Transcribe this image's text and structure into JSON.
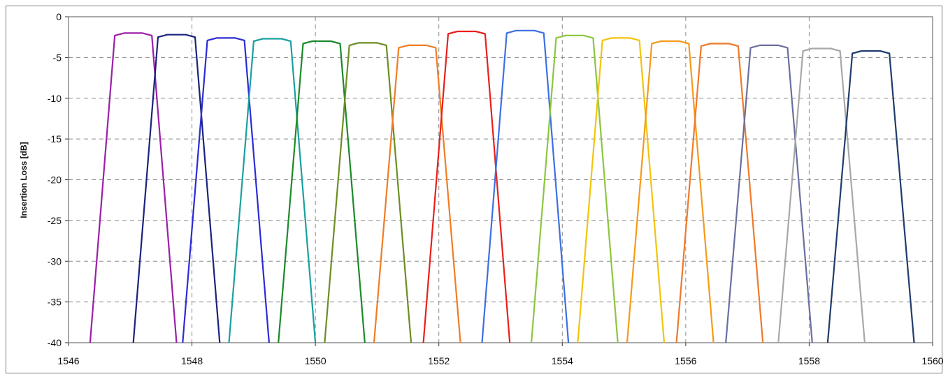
{
  "chart_data": {
    "type": "line",
    "title": "",
    "xlabel": "",
    "ylabel": "Insertion Loss [dB]",
    "xlim": [
      1546,
      1560
    ],
    "ylim": [
      -40,
      0
    ],
    "xticks": [
      1546,
      1548,
      1550,
      1552,
      1554,
      1556,
      1558,
      1560
    ],
    "yticks": [
      0,
      -5,
      -10,
      -15,
      -20,
      -25,
      -30,
      -35,
      -40
    ],
    "x_tick_labels": [
      "1546",
      "1548",
      "1550",
      "1552",
      "1554",
      "1556",
      "1558",
      "1560"
    ],
    "y_tick_labels": [
      "0",
      "-5",
      "-10",
      "-15",
      "-20",
      "-25",
      "-30",
      "-35",
      "-40"
    ],
    "grid": true,
    "grid_style": "dashed",
    "legend": "none",
    "series": [
      {
        "color": "#9b1fa8",
        "x": [
          1546.35,
          1546.75,
          1546.9,
          1547.2,
          1547.35,
          1547.75
        ],
        "y": [
          -40,
          -2.3,
          -2.0,
          -2.0,
          -2.3,
          -40
        ]
      },
      {
        "color": "#1a237e",
        "x": [
          1547.05,
          1547.45,
          1547.6,
          1547.9,
          1548.05,
          1548.45
        ],
        "y": [
          -40,
          -2.5,
          -2.2,
          -2.2,
          -2.5,
          -40
        ]
      },
      {
        "color": "#2c2cd6",
        "x": [
          1547.85,
          1548.25,
          1548.4,
          1548.7,
          1548.85,
          1549.25
        ],
        "y": [
          -40,
          -2.9,
          -2.6,
          -2.6,
          -2.9,
          -40
        ]
      },
      {
        "color": "#1aa0a0",
        "x": [
          1548.6,
          1549.0,
          1549.15,
          1549.45,
          1549.6,
          1550.0
        ],
        "y": [
          -40,
          -3.0,
          -2.7,
          -2.7,
          -3.0,
          -40
        ]
      },
      {
        "color": "#1b8a2a",
        "x": [
          1549.4,
          1549.8,
          1549.95,
          1550.25,
          1550.4,
          1550.8
        ],
        "y": [
          -40,
          -3.3,
          -3.0,
          -3.0,
          -3.3,
          -40
        ]
      },
      {
        "color": "#6b8e23",
        "x": [
          1550.15,
          1550.55,
          1550.7,
          1551.0,
          1551.15,
          1551.55
        ],
        "y": [
          -40,
          -3.5,
          -3.2,
          -3.2,
          -3.5,
          -40
        ]
      },
      {
        "color": "#f07d24",
        "x": [
          1550.95,
          1551.35,
          1551.5,
          1551.8,
          1551.95,
          1552.35
        ],
        "y": [
          -40,
          -3.8,
          -3.5,
          -3.5,
          -3.8,
          -40
        ]
      },
      {
        "color": "#e8201c",
        "x": [
          1551.75,
          1552.15,
          1552.3,
          1552.6,
          1552.75,
          1553.15
        ],
        "y": [
          -40,
          -2.1,
          -1.8,
          -1.8,
          -2.1,
          -40
        ]
      },
      {
        "color": "#3d6fe3",
        "x": [
          1552.7,
          1553.1,
          1553.25,
          1553.55,
          1553.7,
          1554.1
        ],
        "y": [
          -40,
          -2.0,
          -1.7,
          -1.7,
          -2.0,
          -40
        ]
      },
      {
        "color": "#8cc63f",
        "x": [
          1553.5,
          1553.9,
          1554.05,
          1554.35,
          1554.5,
          1554.9
        ],
        "y": [
          -40,
          -2.6,
          -2.3,
          -2.3,
          -2.6,
          -40
        ]
      },
      {
        "color": "#f2c40d",
        "x": [
          1554.25,
          1554.65,
          1554.8,
          1555.1,
          1555.25,
          1555.65
        ],
        "y": [
          -40,
          -2.9,
          -2.6,
          -2.6,
          -2.9,
          -40
        ]
      },
      {
        "color": "#f59a1a",
        "x": [
          1555.05,
          1555.45,
          1555.6,
          1555.9,
          1556.05,
          1556.45
        ],
        "y": [
          -40,
          -3.3,
          -3.0,
          -3.0,
          -3.3,
          -40
        ]
      },
      {
        "color": "#ef7a2a",
        "x": [
          1555.85,
          1556.25,
          1556.4,
          1556.7,
          1556.85,
          1557.25
        ],
        "y": [
          -40,
          -3.6,
          -3.3,
          -3.3,
          -3.6,
          -40
        ]
      },
      {
        "color": "#6a6fa0",
        "x": [
          1556.65,
          1557.05,
          1557.2,
          1557.5,
          1557.65,
          1558.05
        ],
        "y": [
          -40,
          -3.8,
          -3.5,
          -3.5,
          -3.8,
          -40
        ]
      },
      {
        "color": "#a8a8a8",
        "x": [
          1557.5,
          1557.9,
          1558.05,
          1558.35,
          1558.5,
          1558.9
        ],
        "y": [
          -40,
          -4.2,
          -3.9,
          -3.9,
          -4.2,
          -40
        ]
      },
      {
        "color": "#1f3c6e",
        "x": [
          1558.3,
          1558.7,
          1558.85,
          1559.15,
          1559.3,
          1559.7
        ],
        "y": [
          -40,
          -4.5,
          -4.2,
          -4.2,
          -4.5,
          -40
        ]
      }
    ]
  }
}
